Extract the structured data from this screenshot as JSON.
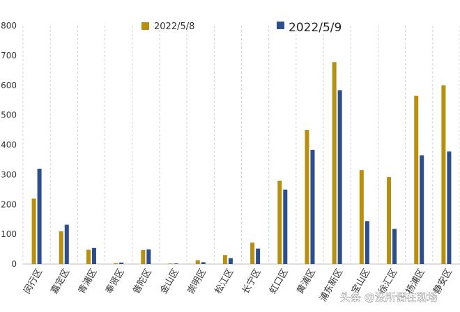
{
  "chart_data": {
    "type": "bar",
    "title": "",
    "xlabel": "",
    "ylabel": "",
    "ylim": [
      0,
      800
    ],
    "yticks": [
      0,
      100,
      200,
      300,
      400,
      500,
      600,
      700,
      800
    ],
    "grid": "vertical-dashed",
    "legend_position": "top-center",
    "categories": [
      "闵行区",
      "嘉定区",
      "青浦区",
      "奉贤区",
      "普陀区",
      "金山区",
      "崇明区",
      "松江区",
      "长宁区",
      "虹口区",
      "黄浦区",
      "浦东新区",
      "宝山区",
      "徐汇区",
      "杨浦区",
      "静安区"
    ],
    "series": [
      {
        "name": "2022/5/8",
        "color": "#b8900f",
        "values": [
          220,
          110,
          48,
          3,
          47,
          2,
          13,
          30,
          72,
          280,
          450,
          678,
          315,
          292,
          565,
          600
        ]
      },
      {
        "name": "2022/5/9",
        "color": "#2c4f8c",
        "values": [
          320,
          132,
          54,
          5,
          49,
          2,
          6,
          20,
          52,
          250,
          383,
          583,
          144,
          118,
          365,
          378
        ]
      }
    ]
  },
  "watermark": {
    "text": "头条 @没所谓在现场"
  }
}
